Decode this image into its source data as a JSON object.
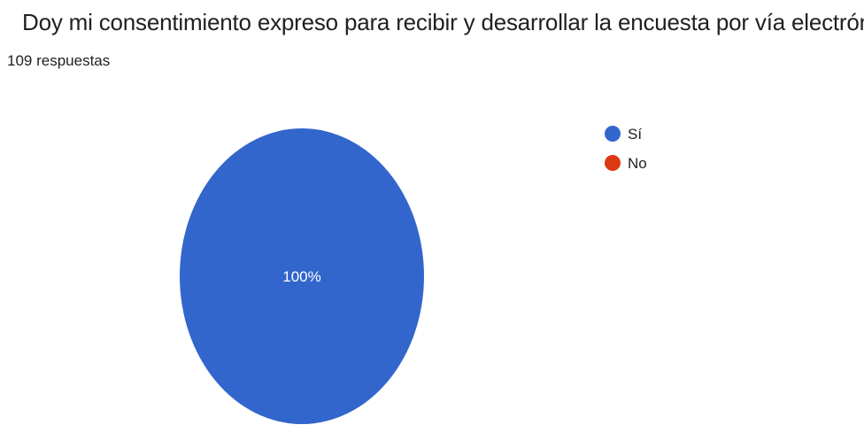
{
  "question": {
    "title": "Doy mi consentimiento expreso para recibir y desarrollar la encuesta  por vía electrónica",
    "responses": "109 respuestas"
  },
  "chart_data": {
    "type": "pie",
    "title": "Doy mi consentimiento expreso para recibir y desarrollar la encuesta  por vía electrónica",
    "subtitle": "109 respuestas",
    "categories": [
      "Sí",
      "No"
    ],
    "values": [
      100,
      0
    ],
    "unit": "%",
    "colors": [
      "#3366cc",
      "#dc3912"
    ],
    "data_labels": [
      "100%",
      ""
    ],
    "legend_position": "right"
  }
}
